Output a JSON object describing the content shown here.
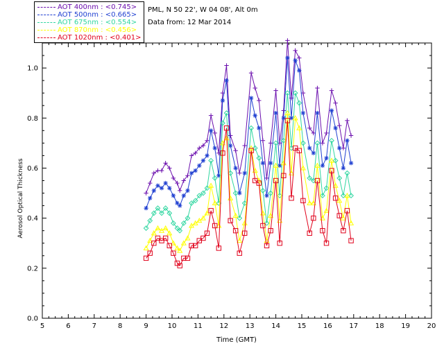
{
  "header": {
    "location": "PML, N 50 22', W 04 08', Alt 0m",
    "date_line": "Data from: 12 Mar 2014"
  },
  "legend": [
    {
      "label": "AOT  400nm : <0.745>",
      "color": "#6a0dad"
    },
    {
      "label": "AOT  500nm : <0.665>",
      "color": "#1f3fd1"
    },
    {
      "label": "AOT  675nm : <0.554>",
      "color": "#2fd6a0"
    },
    {
      "label": "AOT  870nm : <0.456>",
      "color": "#ffff00"
    },
    {
      "label": "AOT 1020nm : <0.401>",
      "color": "#e0001a"
    }
  ],
  "chart_data": {
    "type": "line",
    "xlabel": "Time (GMT)",
    "ylabel": "Aerosol Optical Thickness",
    "xlim": [
      5,
      20
    ],
    "ylim": [
      0.0,
      1.1
    ],
    "xticks": [
      "5",
      "6",
      "7",
      "8",
      "9",
      "10",
      "11",
      "12",
      "13",
      "14",
      "15",
      "16",
      "17",
      "18",
      "19",
      "20"
    ],
    "yticks": [
      "0.0",
      "0.2",
      "0.4",
      "0.6",
      "0.8",
      "1.0"
    ],
    "x": [
      9.0,
      9.15,
      9.3,
      9.45,
      9.6,
      9.75,
      9.9,
      10.05,
      10.2,
      10.3,
      10.45,
      10.6,
      10.75,
      10.9,
      11.05,
      11.2,
      11.35,
      11.5,
      11.65,
      11.8,
      11.95,
      12.1,
      12.25,
      12.45,
      12.6,
      12.8,
      13.05,
      13.2,
      13.35,
      13.5,
      13.65,
      13.8,
      14.0,
      14.15,
      14.3,
      14.45,
      14.6,
      14.75,
      14.9,
      15.05,
      15.3,
      15.45,
      15.6,
      15.8,
      15.95,
      16.15,
      16.3,
      16.45,
      16.6,
      16.75,
      16.9
    ],
    "series": [
      {
        "name": "AOT  400nm : <0.745>",
        "marker": "plus",
        "values": [
          0.5,
          0.54,
          0.58,
          0.59,
          0.59,
          0.62,
          0.6,
          0.56,
          0.54,
          0.51,
          0.55,
          0.57,
          0.65,
          0.66,
          0.68,
          0.69,
          0.71,
          0.81,
          0.74,
          0.66,
          0.9,
          1.01,
          0.73,
          0.67,
          0.58,
          0.69,
          0.98,
          0.92,
          0.87,
          0.71,
          0.56,
          0.7,
          0.91,
          0.7,
          0.83,
          1.11,
          0.88,
          1.07,
          1.04,
          0.9,
          0.76,
          0.74,
          0.92,
          0.7,
          0.74,
          0.91,
          0.86,
          0.77,
          0.68,
          0.79,
          0.73
        ]
      },
      {
        "name": "AOT  500nm : <0.665>",
        "marker": "asterisk",
        "values": [
          0.44,
          0.48,
          0.51,
          0.53,
          0.52,
          0.54,
          0.52,
          0.49,
          0.46,
          0.45,
          0.49,
          0.51,
          0.58,
          0.59,
          0.61,
          0.63,
          0.65,
          0.75,
          0.68,
          0.57,
          0.87,
          0.95,
          0.69,
          0.6,
          0.5,
          0.58,
          0.88,
          0.81,
          0.76,
          0.62,
          0.49,
          0.62,
          0.82,
          0.61,
          0.8,
          1.04,
          0.8,
          1.03,
          0.99,
          0.82,
          0.68,
          0.66,
          0.82,
          0.61,
          0.64,
          0.83,
          0.76,
          0.68,
          0.6,
          0.71,
          0.62
        ]
      },
      {
        "name": "AOT  675nm : <0.554>",
        "marker": "diamond",
        "values": [
          0.36,
          0.39,
          0.42,
          0.44,
          0.42,
          0.44,
          0.42,
          0.38,
          0.36,
          0.35,
          0.38,
          0.4,
          0.46,
          0.47,
          0.49,
          0.5,
          0.52,
          0.63,
          0.56,
          0.46,
          0.78,
          0.82,
          0.58,
          0.5,
          0.4,
          0.46,
          0.76,
          0.68,
          0.64,
          0.51,
          0.38,
          0.5,
          0.7,
          0.49,
          0.71,
          0.9,
          0.68,
          0.9,
          0.86,
          0.7,
          0.56,
          0.55,
          0.7,
          0.49,
          0.52,
          0.71,
          0.63,
          0.56,
          0.49,
          0.58,
          0.49
        ]
      },
      {
        "name": "AOT  870nm : <0.456>",
        "marker": "triangle",
        "values": [
          0.28,
          0.31,
          0.34,
          0.36,
          0.35,
          0.36,
          0.34,
          0.3,
          0.28,
          0.27,
          0.3,
          0.32,
          0.37,
          0.38,
          0.39,
          0.4,
          0.42,
          0.53,
          0.46,
          0.37,
          0.7,
          0.72,
          0.48,
          0.41,
          0.31,
          0.38,
          0.68,
          0.59,
          0.55,
          0.42,
          0.31,
          0.41,
          0.61,
          0.39,
          0.62,
          0.82,
          0.58,
          0.8,
          0.76,
          0.6,
          0.46,
          0.46,
          0.61,
          0.4,
          0.43,
          0.63,
          0.53,
          0.47,
          0.4,
          0.49,
          0.38
        ]
      },
      {
        "name": "AOT 1020nm : <0.401>",
        "marker": "square",
        "values": [
          0.24,
          0.26,
          0.3,
          0.32,
          0.31,
          0.32,
          0.29,
          0.26,
          0.22,
          0.21,
          0.24,
          0.24,
          0.29,
          0.29,
          0.31,
          0.32,
          0.34,
          0.43,
          0.37,
          0.28,
          0.66,
          0.76,
          0.39,
          0.35,
          0.26,
          0.34,
          0.67,
          0.55,
          0.54,
          0.37,
          0.29,
          0.35,
          0.55,
          0.3,
          0.57,
          0.79,
          0.48,
          0.68,
          0.67,
          0.47,
          0.34,
          0.4,
          0.55,
          0.35,
          0.3,
          0.59,
          0.48,
          0.41,
          0.35,
          0.43,
          0.31
        ]
      }
    ]
  }
}
